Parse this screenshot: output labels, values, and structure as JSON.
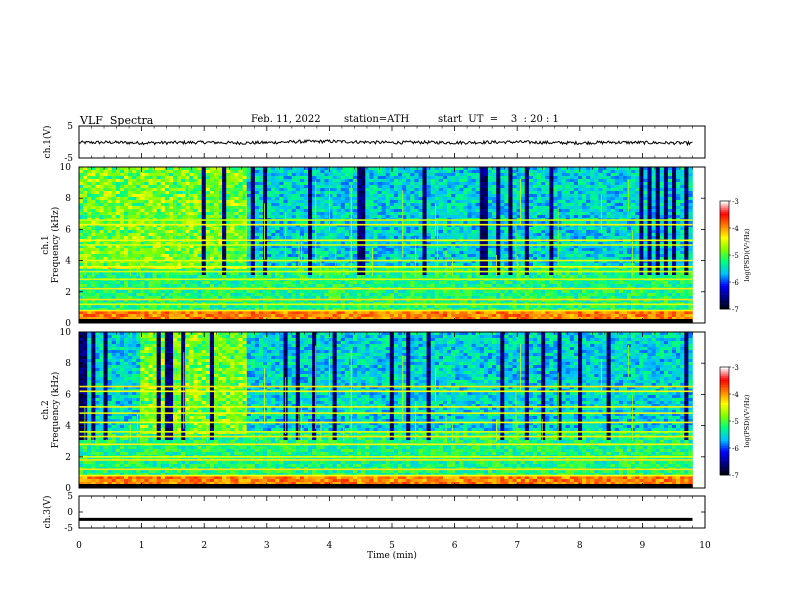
{
  "header": {
    "title": "VLF  Spectra",
    "date": "Feb. 11, 2022",
    "station": "station=ATH",
    "start": "start  UT  =    3  : 20 : 1"
  },
  "chart_data": [
    {
      "type": "line",
      "name": "ch1_waveform",
      "ylabel": "ch.1(V)",
      "ylim": [
        -5,
        5
      ],
      "yticks": [
        "5",
        "-5"
      ],
      "xlim": [
        0,
        10
      ],
      "x": [
        0,
        0.5,
        1,
        1.5,
        2,
        2.5,
        3,
        3.5,
        4,
        4.5,
        5,
        5.5,
        6,
        6.5,
        7,
        7.5,
        8,
        8.5,
        9,
        9.5,
        9.8
      ],
      "y": [
        -0.2,
        -0.1,
        -0.3,
        -0.2,
        -0.1,
        -0.3,
        -0.2,
        0.1,
        0.2,
        0.0,
        -0.2,
        -0.1,
        -0.2,
        -0.1,
        0.0,
        -0.2,
        -0.3,
        -0.1,
        -0.2,
        -0.3,
        -0.4
      ]
    },
    {
      "type": "heatmap",
      "name": "ch1_spectrogram",
      "ylabel": "ch.1\nFrequency (kHz)",
      "ylim": [
        0,
        10
      ],
      "yticks": [
        "10",
        "8",
        "6",
        "4",
        "2",
        "0"
      ],
      "xlim": [
        0,
        10
      ],
      "colorbar": {
        "label": "log(PSD)(V²/Hz)",
        "range": [
          -7,
          -3
        ],
        "ticks": [
          "-3",
          "-4",
          "-5",
          "-6",
          "-7"
        ]
      },
      "bands_khz": [
        0.2,
        0.8,
        1.2,
        1.5,
        2.2,
        2.8,
        3.3,
        3.6,
        4.0,
        5.0,
        5.3,
        6.3,
        6.6
      ],
      "high_activity_until_min": 2.7
    },
    {
      "type": "heatmap",
      "name": "ch2_spectrogram",
      "ylabel": "ch.2\nFrequency (kHz)",
      "ylim": [
        0,
        10
      ],
      "yticks": [
        "10",
        "8",
        "6",
        "4",
        "2",
        "0"
      ],
      "xlim": [
        0,
        10
      ],
      "colorbar": {
        "label": "log(PSD)(V²/Hz)",
        "range": [
          -7,
          -3
        ],
        "ticks": [
          "-3",
          "-4",
          "-5",
          "-6",
          "-7"
        ]
      },
      "bands_khz": [
        0.8,
        1.2,
        1.8,
        2.0,
        2.8,
        3.3,
        3.6,
        4.2,
        4.8,
        5.2,
        6.2,
        6.5
      ],
      "high_activity_until_min": 2.7
    },
    {
      "type": "line",
      "name": "ch3_waveform",
      "ylabel": "ch.3(V)",
      "ylim": [
        -5,
        5
      ],
      "yticks": [
        "5",
        "0",
        "-5"
      ],
      "xlim": [
        0,
        10
      ],
      "x": [
        0,
        9.8
      ],
      "y": [
        -2.3,
        -2.3
      ]
    }
  ],
  "xaxis": {
    "label": "Time (min)",
    "ticks": [
      "0",
      "1",
      "2",
      "3",
      "4",
      "5",
      "6",
      "7",
      "8",
      "9",
      "10"
    ]
  },
  "colors": {
    "cmap": [
      "#000000",
      "#000080",
      "#0000ff",
      "#00c0ff",
      "#00ff80",
      "#80ff00",
      "#ffff00",
      "#ff8000",
      "#ff0000",
      "#ffffff"
    ]
  }
}
